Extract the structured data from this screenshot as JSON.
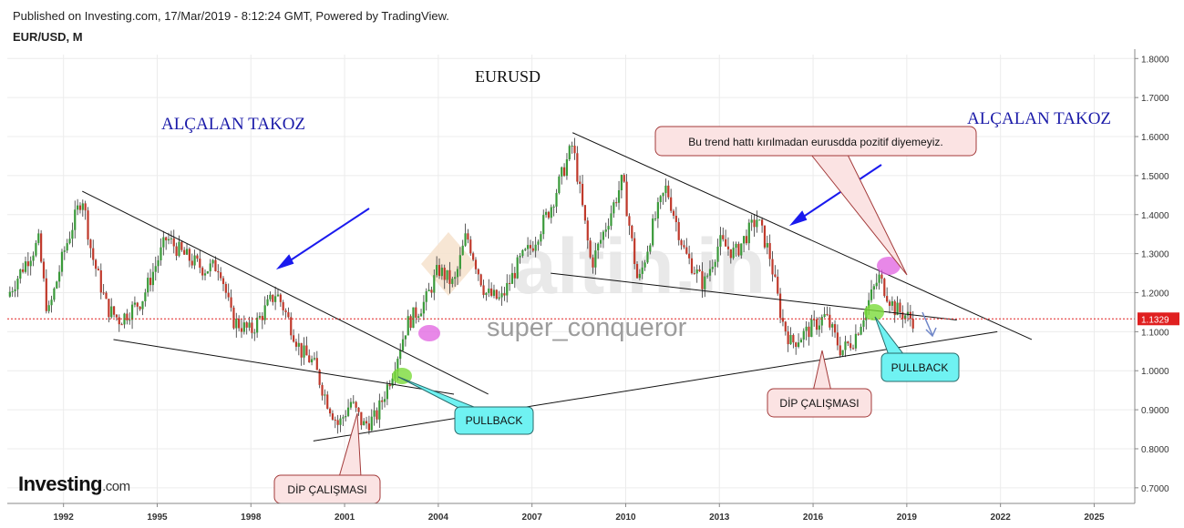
{
  "header": {
    "published_line": "Published on Investing.com, 17/Mar/2019 - 8:12:24 GMT, Powered by TradingView.",
    "symbol_line": "EUR/USD, M"
  },
  "branding": {
    "logo_text": "Investing",
    "logo_suffix": ".com",
    "watermark_logo": "altin.in",
    "watermark_user": "super_conqueror"
  },
  "colors": {
    "up_candle": "#3a9a3a",
    "down_candle": "#c0392b",
    "annotation_title": "#1a1aa8",
    "arrow": "#1a1aee",
    "price_line": "#e02020",
    "price_label_bg": "#e02020",
    "callout_pink_bg": "#fbe3e3",
    "callout_pink_border": "#a33a3a",
    "callout_cyan_bg": "#6ff2f2",
    "callout_cyan_border": "#2a6a6a",
    "highlight_magenta": "#e060e0",
    "highlight_green": "#7adb3a"
  },
  "annotations": {
    "chart_title": "EURUSD",
    "left_pattern_label": "ALÇALAN TAKOZ",
    "right_pattern_label": "ALÇALAN TAKOZ",
    "trend_note": "Bu trend hattı kırılmadan eurusdda pozitif diyemeyiz.",
    "pullback_left": "PULLBACK",
    "pullback_right": "PULLBACK",
    "bottom_left": "DİP ÇALIŞMASI",
    "bottom_right": "DİP ÇALIŞMASI"
  },
  "chart_data": {
    "type": "candlestick",
    "symbol": "EUR/USD",
    "interval": "M",
    "x_tick_labels": [
      "1992",
      "1995",
      "1998",
      "2001",
      "2004",
      "2007",
      "2010",
      "2013",
      "2016",
      "2019",
      "2022",
      "2025"
    ],
    "y_tick_labels": [
      "0.7000",
      "0.8000",
      "0.9000",
      "1.0000",
      "1.1000",
      "1.2000",
      "1.3000",
      "1.4000",
      "1.5000",
      "1.6000",
      "1.7000",
      "1.8000"
    ],
    "xlim": [
      1990.2,
      2026.3
    ],
    "ylim": [
      0.66,
      1.81
    ],
    "last_price": 1.1329,
    "last_price_label": "1.1329",
    "price_path": [
      [
        1990.2,
        1.19
      ],
      [
        1990.8,
        1.28
      ],
      [
        1991.2,
        1.33
      ],
      [
        1991.5,
        1.14
      ],
      [
        1992.0,
        1.3
      ],
      [
        1992.6,
        1.45
      ],
      [
        1992.9,
        1.3
      ],
      [
        1993.4,
        1.16
      ],
      [
        1993.8,
        1.13
      ],
      [
        1994.5,
        1.18
      ],
      [
        1995.3,
        1.34
      ],
      [
        1995.8,
        1.3
      ],
      [
        1996.5,
        1.26
      ],
      [
        1997.0,
        1.27
      ],
      [
        1997.4,
        1.13
      ],
      [
        1998.0,
        1.1
      ],
      [
        1998.8,
        1.2
      ],
      [
        1999.0,
        1.17
      ],
      [
        1999.6,
        1.05
      ],
      [
        2000.0,
        1.02
      ],
      [
        2000.4,
        0.93
      ],
      [
        2000.8,
        0.86
      ],
      [
        2001.2,
        0.92
      ],
      [
        2001.6,
        0.86
      ],
      [
        2002.0,
        0.88
      ],
      [
        2002.5,
        0.99
      ],
      [
        2003.0,
        1.12
      ],
      [
        2003.6,
        1.18
      ],
      [
        2004.0,
        1.26
      ],
      [
        2004.5,
        1.22
      ],
      [
        2004.9,
        1.35
      ],
      [
        2005.5,
        1.2
      ],
      [
        2006.0,
        1.18
      ],
      [
        2006.6,
        1.28
      ],
      [
        2007.0,
        1.32
      ],
      [
        2007.6,
        1.42
      ],
      [
        2008.3,
        1.58
      ],
      [
        2008.9,
        1.27
      ],
      [
        2009.5,
        1.4
      ],
      [
        2009.9,
        1.49
      ],
      [
        2010.4,
        1.22
      ],
      [
        2010.9,
        1.38
      ],
      [
        2011.3,
        1.47
      ],
      [
        2011.9,
        1.3
      ],
      [
        2012.5,
        1.22
      ],
      [
        2013.0,
        1.33
      ],
      [
        2013.5,
        1.3
      ],
      [
        2014.2,
        1.39
      ],
      [
        2014.6,
        1.3
      ],
      [
        2015.0,
        1.13
      ],
      [
        2015.3,
        1.07
      ],
      [
        2015.8,
        1.1
      ],
      [
        2016.4,
        1.14
      ],
      [
        2016.9,
        1.05
      ],
      [
        2017.3,
        1.08
      ],
      [
        2017.8,
        1.18
      ],
      [
        2018.1,
        1.24
      ],
      [
        2018.6,
        1.16
      ],
      [
        2019.2,
        1.13
      ]
    ],
    "lines": [
      {
        "name": "left_wedge_upper",
        "from": [
          1992.6,
          1.46
        ],
        "to": [
          2005.6,
          0.94
        ]
      },
      {
        "name": "left_wedge_lower",
        "from": [
          1993.6,
          1.08
        ],
        "to": [
          2004.5,
          0.94
        ]
      },
      {
        "name": "support_trend",
        "from": [
          2000.0,
          0.82
        ],
        "to": [
          2021.9,
          1.1
        ]
      },
      {
        "name": "right_wedge_upper",
        "from": [
          2008.3,
          1.61
        ],
        "to": [
          2023.0,
          1.08
        ]
      },
      {
        "name": "right_wedge_lower",
        "from": [
          2007.6,
          1.25
        ],
        "to": [
          2020.6,
          1.13
        ]
      }
    ]
  }
}
